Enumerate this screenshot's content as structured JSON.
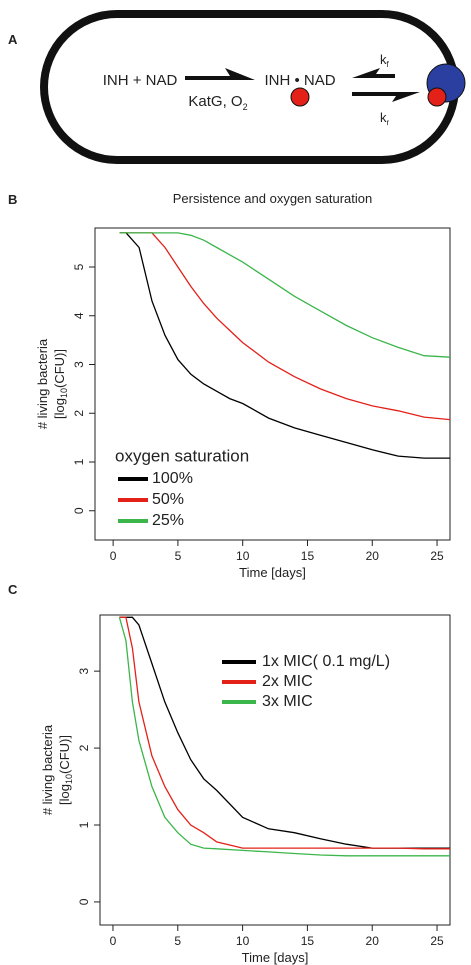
{
  "diagram": {
    "panel": "A",
    "reactants": "INH + NAD",
    "enzyme": {
      "text": "KatG, O",
      "sub": "2"
    },
    "adduct": "INH • NAD",
    "kf": {
      "text": "k",
      "sub": "f"
    },
    "kr": {
      "text": "k",
      "sub": "r"
    }
  },
  "chart_data": [
    {
      "type": "line",
      "panel": "B",
      "title": "Persistence and oxygen saturation",
      "x_label": "Time [days]",
      "y_label": {
        "line1": "# living bacteria",
        "pre": "[log",
        "sub": "10",
        "post": "(CFU)]"
      },
      "legend_title": "oxygen saturation",
      "x": [
        0.5,
        1,
        2,
        3,
        4,
        5,
        6,
        7,
        8,
        9,
        10,
        12,
        14,
        16,
        18,
        20,
        22,
        24,
        26
      ],
      "series": [
        {
          "name": "100%",
          "color": "#000000",
          "values": [
            5.7,
            5.7,
            5.4,
            4.3,
            3.6,
            3.1,
            2.8,
            2.6,
            2.45,
            2.3,
            2.2,
            1.9,
            1.7,
            1.55,
            1.4,
            1.25,
            1.12,
            1.08,
            1.08
          ]
        },
        {
          "name": "50%",
          "color": "#e32119",
          "values": [
            5.7,
            5.7,
            5.7,
            5.7,
            5.4,
            5.0,
            4.6,
            4.25,
            3.95,
            3.7,
            3.45,
            3.05,
            2.75,
            2.5,
            2.3,
            2.15,
            2.05,
            1.92,
            1.87
          ]
        },
        {
          "name": "25%",
          "color": "#3cb64a",
          "values": [
            5.7,
            5.7,
            5.7,
            5.7,
            5.7,
            5.7,
            5.65,
            5.55,
            5.4,
            5.25,
            5.1,
            4.75,
            4.4,
            4.1,
            3.8,
            3.55,
            3.35,
            3.18,
            3.15
          ]
        }
      ],
      "xlim": [
        -1.4,
        26
      ],
      "ylim": [
        -0.6,
        5.8
      ],
      "xticks": [
        0,
        5,
        10,
        15,
        20,
        25
      ],
      "yticks": [
        0,
        1,
        2,
        3,
        4,
        5
      ],
      "grid": false
    },
    {
      "type": "line",
      "panel": "C",
      "x_label": "Time [days]",
      "y_label": {
        "line1": "# living bacteria",
        "pre": "[log",
        "sub": "10",
        "post": "(CFU)]"
      },
      "x": [
        0.5,
        1,
        1.5,
        2,
        3,
        4,
        5,
        6,
        7,
        8,
        10,
        12,
        14,
        16,
        18,
        20,
        22,
        24,
        26
      ],
      "series": [
        {
          "name": "1x MIC( 0.1 mg/L)",
          "color": "#000000",
          "values": [
            3.7,
            3.7,
            3.7,
            3.6,
            3.1,
            2.6,
            2.2,
            1.85,
            1.6,
            1.45,
            1.1,
            0.95,
            0.9,
            0.82,
            0.75,
            0.7,
            0.7,
            0.7,
            0.7
          ]
        },
        {
          "name": "2x MIC",
          "color": "#e32119",
          "values": [
            3.7,
            3.7,
            3.3,
            2.6,
            1.9,
            1.5,
            1.2,
            1.0,
            0.9,
            0.78,
            0.7,
            0.7,
            0.7,
            0.7,
            0.7,
            0.7,
            0.7,
            0.69,
            0.69
          ]
        },
        {
          "name": "3x MIC",
          "color": "#3cb64a",
          "values": [
            3.7,
            3.4,
            2.6,
            2.1,
            1.5,
            1.1,
            0.9,
            0.75,
            0.7,
            0.69,
            0.67,
            0.65,
            0.63,
            0.61,
            0.6,
            0.6,
            0.6,
            0.6,
            0.6
          ]
        }
      ],
      "xlim": [
        -1,
        26
      ],
      "ylim": [
        -0.3,
        3.73
      ],
      "xticks": [
        0,
        5,
        10,
        15,
        20,
        25
      ],
      "yticks": [
        0,
        1,
        2,
        3
      ],
      "grid": false
    }
  ]
}
